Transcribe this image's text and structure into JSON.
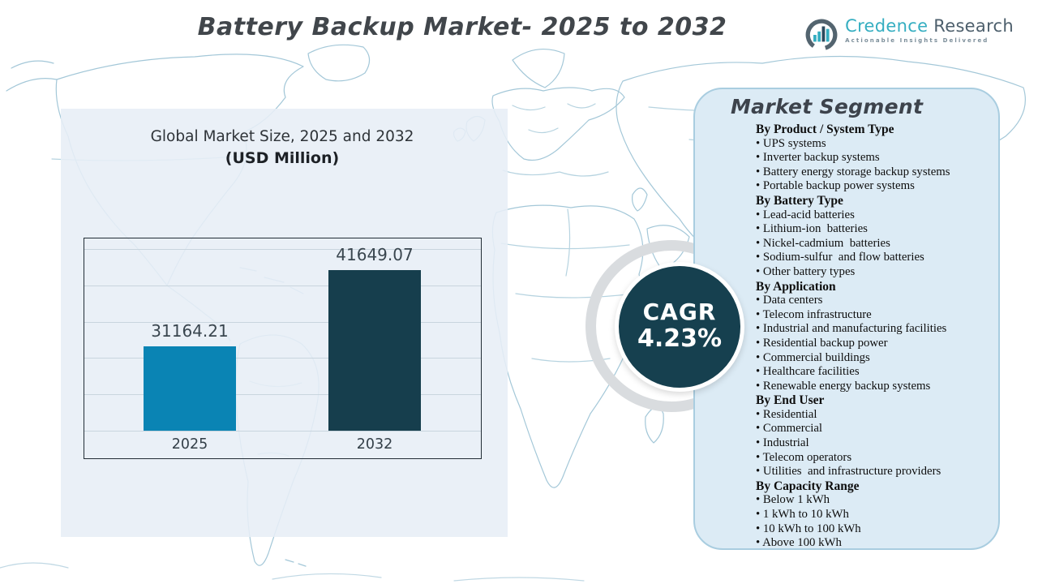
{
  "title": "Battery Backup Market- 2025 to 2032",
  "logo": {
    "icon": "bar-chart-in-ring",
    "name_primary": "Credence",
    "name_secondary": " Research",
    "tagline": "Actionable Insights Delivered"
  },
  "chart_panel": {
    "subtitle_line1": "Global Market Size, 2025 and 2032",
    "subtitle_line2": "(USD Million)"
  },
  "chart_data": {
    "type": "bar",
    "title": "Global Market Size, 2025 and 2032 (USD Million)",
    "unit": "USD Million",
    "categories": [
      "2025",
      "2032"
    ],
    "values": [
      31164.21,
      41649.07
    ],
    "value_labels": [
      "31164.21",
      "41649.07"
    ],
    "bar_colors": [
      "#0a84b4",
      "#163e4d"
    ],
    "ylim": [
      19500,
      46000
    ],
    "gridlines": 6,
    "grid": true,
    "legend": "none",
    "xlabel": "",
    "ylabel": ""
  },
  "cagr": {
    "label": "CAGR",
    "value": "4.23%"
  },
  "market_segment": {
    "title": "Market Segment",
    "groups": [
      {
        "heading": "By Product / System Type",
        "items": [
          "UPS systems",
          "Inverter backup systems",
          "Battery energy storage backup systems",
          "Portable backup power systems"
        ]
      },
      {
        "heading": "By Battery Type",
        "items": [
          "Lead-acid batteries",
          "Lithium-ion  batteries",
          "Nickel-cadmium  batteries",
          "Sodium-sulfur  and flow batteries",
          "Other battery types"
        ]
      },
      {
        "heading": "By Application",
        "items": [
          "Data centers",
          "Telecom infrastructure",
          "Industrial and manufacturing facilities",
          "Residential backup power",
          "Commercial buildings",
          "Healthcare facilities",
          "Renewable energy backup systems"
        ]
      },
      {
        "heading": "By End User",
        "items": [
          "Residential",
          "Commercial",
          "Industrial",
          "Telecom operators",
          "Utilities  and infrastructure providers"
        ]
      },
      {
        "heading": "By Capacity Range",
        "items": [
          "Below 1 kWh",
          "1 kWh to 10 kWh",
          "10 kWh to 100 kWh",
          "Above 100 kWh"
        ]
      }
    ]
  },
  "colors": {
    "bar_2025": "#0a84b4",
    "bar_2032": "#163e4d",
    "cagr_circle": "#16404f",
    "left_panel": "#e7eef6",
    "right_panel": "#dcebf5",
    "right_panel_border": "#a9cde0",
    "map_stroke": "#9fc5d6",
    "logo_teal": "#35aec1",
    "logo_slate": "#4d5f6c",
    "title_text": "#41464b"
  }
}
